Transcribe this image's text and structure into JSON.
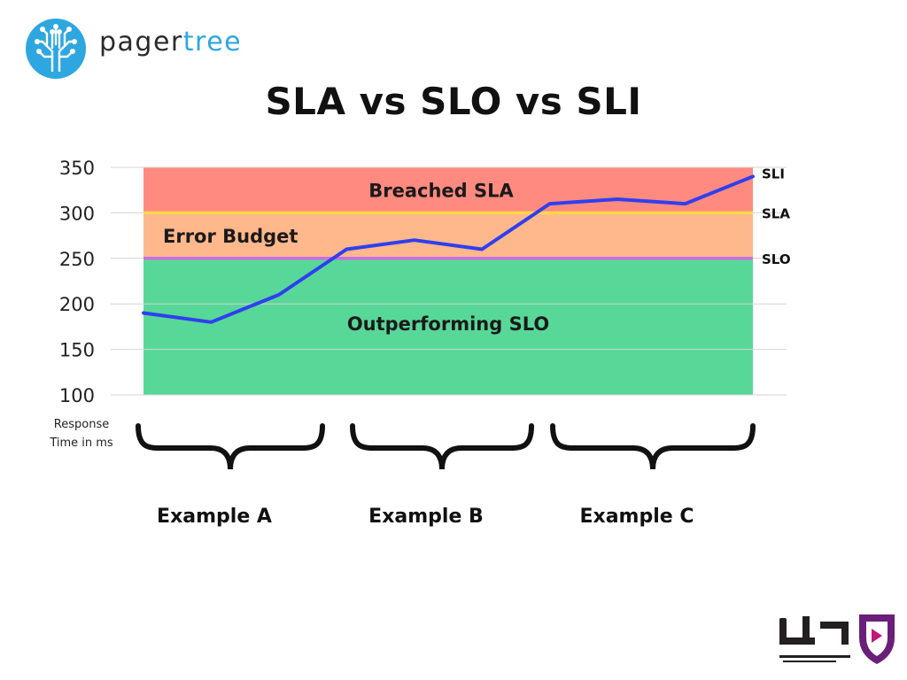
{
  "header": {
    "logo_word_1": "pager",
    "logo_word_2": "tree",
    "logo_accent": "#2ea7e0"
  },
  "title": "SLA vs SLO vs SLI",
  "chart_data": {
    "type": "line",
    "ylabel": "Response Time in ms",
    "ylabel_lines": [
      "Response",
      "Time in ms"
    ],
    "ylim": [
      100,
      350
    ],
    "yticks": [
      "350",
      "300",
      "250",
      "200",
      "150",
      "100"
    ],
    "grid": true,
    "x": [
      1,
      2,
      3,
      4,
      5,
      6,
      7,
      8,
      9,
      10
    ],
    "series": [
      {
        "name": "SLI",
        "values": [
          190,
          180,
          210,
          260,
          270,
          260,
          310,
          315,
          310,
          340
        ],
        "color": "#2f3fef"
      }
    ],
    "thresholds": [
      {
        "name": "SLA",
        "value": 300,
        "color": "#ffd84a"
      },
      {
        "name": "SLO",
        "value": 250,
        "color": "#c86ee0"
      }
    ],
    "zones": [
      {
        "label": "Breached SLA",
        "from": 300,
        "to": 350,
        "color": "#ff8a80"
      },
      {
        "label": "Error Budget",
        "from": 250,
        "to": 300,
        "color": "#ffb78c"
      },
      {
        "label": "Outperforming SLO",
        "from": 100,
        "to": 250,
        "color": "#58d898"
      }
    ],
    "groups": [
      "Example A",
      "Example B",
      "Example C"
    ]
  }
}
